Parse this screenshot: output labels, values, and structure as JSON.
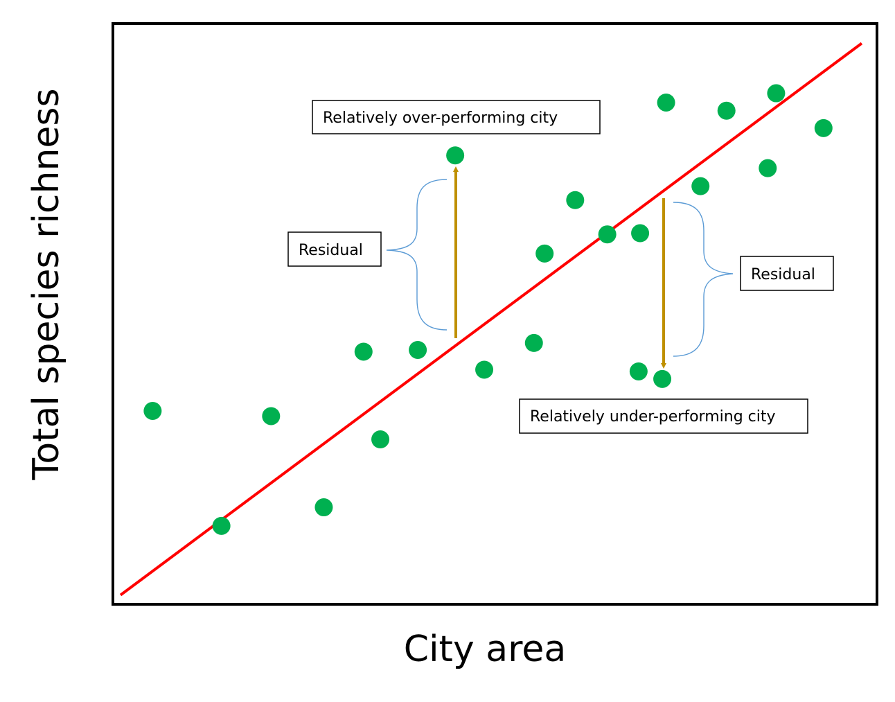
{
  "chart_data": {
    "type": "scatter",
    "title": "",
    "xlabel": "City area",
    "ylabel": "Total species richness",
    "xlim": [
      0,
      100
    ],
    "ylim": [
      0,
      100
    ],
    "grid": false,
    "legend": "none",
    "axis_ticks": "none",
    "point_color": "#00b050",
    "fit_line": {
      "color": "#ff0000",
      "x": [
        1,
        98
      ],
      "y": [
        1.6,
        96.6
      ]
    },
    "points": [
      {
        "x": 5.2,
        "y": 33.3
      },
      {
        "x": 14.2,
        "y": 13.5
      },
      {
        "x": 20.7,
        "y": 32.4
      },
      {
        "x": 27.6,
        "y": 16.7
      },
      {
        "x": 32.8,
        "y": 43.5
      },
      {
        "x": 35.0,
        "y": 28.4
      },
      {
        "x": 39.9,
        "y": 43.8
      },
      {
        "x": 44.8,
        "y": 77.3
      },
      {
        "x": 48.6,
        "y": 40.4
      },
      {
        "x": 55.1,
        "y": 45.0
      },
      {
        "x": 56.5,
        "y": 60.4
      },
      {
        "x": 60.5,
        "y": 69.6
      },
      {
        "x": 64.7,
        "y": 63.7
      },
      {
        "x": 69.0,
        "y": 63.9
      },
      {
        "x": 68.8,
        "y": 40.1
      },
      {
        "x": 71.9,
        "y": 38.8
      },
      {
        "x": 72.4,
        "y": 86.4
      },
      {
        "x": 76.9,
        "y": 72.0
      },
      {
        "x": 80.3,
        "y": 85.0
      },
      {
        "x": 85.7,
        "y": 75.1
      },
      {
        "x": 86.8,
        "y": 88.0
      },
      {
        "x": 93.0,
        "y": 82.0
      }
    ],
    "annotations": [
      {
        "text": "Relatively over-performing city"
      },
      {
        "text": "Relatively under-performing city"
      },
      {
        "text": "Residual"
      },
      {
        "text": "Residual"
      }
    ],
    "arrow_color": "#bf9000",
    "brace_color": "#5b9bd5"
  }
}
